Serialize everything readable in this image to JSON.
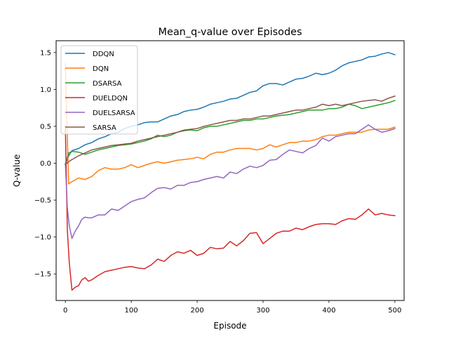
{
  "chart_data": {
    "type": "line",
    "title": "Mean_q-value over Episodes",
    "xlabel": "Episode",
    "ylabel": "Q-value",
    "xlim": [
      -14,
      514
    ],
    "ylim": [
      -1.86,
      1.66
    ],
    "xticks": [
      0,
      100,
      200,
      300,
      400,
      500
    ],
    "xtick_labels": [
      "0",
      "100",
      "200",
      "300",
      "400",
      "500"
    ],
    "yticks": [
      -1.5,
      -1.0,
      -0.5,
      0.0,
      0.5,
      1.0,
      1.5
    ],
    "ytick_labels": [
      "−1.5",
      "−1.0",
      "−0.5",
      "0.0",
      "0.5",
      "1.0",
      "1.5"
    ],
    "grid": false,
    "legend_position": "top-left",
    "series": [
      {
        "name": "DDQN",
        "color": "#1f77b4",
        "x": [
          0,
          5,
          10,
          20,
          30,
          40,
          50,
          60,
          70,
          80,
          90,
          100,
          110,
          120,
          130,
          140,
          150,
          160,
          170,
          180,
          190,
          200,
          210,
          220,
          230,
          240,
          250,
          260,
          270,
          280,
          290,
          300,
          310,
          320,
          330,
          340,
          350,
          360,
          370,
          380,
          390,
          400,
          410,
          420,
          430,
          440,
          450,
          460,
          470,
          480,
          490,
          500
        ],
        "y": [
          -0.02,
          0.1,
          0.17,
          0.2,
          0.25,
          0.28,
          0.33,
          0.36,
          0.4,
          0.42,
          0.47,
          0.5,
          0.52,
          0.55,
          0.56,
          0.56,
          0.6,
          0.64,
          0.66,
          0.7,
          0.72,
          0.73,
          0.76,
          0.8,
          0.82,
          0.84,
          0.87,
          0.88,
          0.92,
          0.96,
          0.98,
          1.05,
          1.08,
          1.08,
          1.06,
          1.1,
          1.14,
          1.15,
          1.18,
          1.22,
          1.2,
          1.22,
          1.26,
          1.32,
          1.36,
          1.38,
          1.4,
          1.44,
          1.45,
          1.48,
          1.5,
          1.47
        ]
      },
      {
        "name": "DQN",
        "color": "#ff7f0e",
        "x": [
          0,
          5,
          10,
          20,
          30,
          40,
          50,
          60,
          70,
          80,
          90,
          100,
          110,
          120,
          130,
          140,
          150,
          160,
          170,
          180,
          190,
          200,
          210,
          220,
          230,
          240,
          250,
          260,
          270,
          280,
          290,
          300,
          310,
          320,
          330,
          340,
          350,
          360,
          370,
          380,
          390,
          400,
          410,
          420,
          430,
          440,
          450,
          460,
          470,
          480,
          490,
          500
        ],
        "y": [
          1.35,
          -0.28,
          -0.25,
          -0.2,
          -0.22,
          -0.18,
          -0.1,
          -0.06,
          -0.08,
          -0.08,
          -0.06,
          -0.02,
          -0.06,
          -0.03,
          0.0,
          0.02,
          0.0,
          0.02,
          0.04,
          0.05,
          0.06,
          0.08,
          0.06,
          0.12,
          0.15,
          0.15,
          0.18,
          0.2,
          0.2,
          0.2,
          0.18,
          0.2,
          0.25,
          0.22,
          0.25,
          0.28,
          0.28,
          0.3,
          0.3,
          0.32,
          0.36,
          0.38,
          0.38,
          0.4,
          0.42,
          0.42,
          0.42,
          0.45,
          0.46,
          0.46,
          0.46,
          0.49
        ]
      },
      {
        "name": "DSARSA",
        "color": "#2ca02c",
        "x": [
          0,
          5,
          10,
          20,
          30,
          40,
          50,
          60,
          70,
          80,
          90,
          100,
          110,
          120,
          130,
          140,
          150,
          160,
          170,
          180,
          190,
          200,
          210,
          220,
          230,
          240,
          250,
          260,
          270,
          280,
          290,
          300,
          310,
          320,
          330,
          340,
          350,
          360,
          370,
          380,
          390,
          400,
          410,
          420,
          430,
          440,
          450,
          460,
          470,
          480,
          490,
          500
        ],
        "y": [
          -0.02,
          0.14,
          0.16,
          0.15,
          0.12,
          0.15,
          0.18,
          0.2,
          0.22,
          0.24,
          0.25,
          0.26,
          0.28,
          0.3,
          0.33,
          0.38,
          0.36,
          0.38,
          0.42,
          0.44,
          0.45,
          0.44,
          0.48,
          0.5,
          0.5,
          0.52,
          0.54,
          0.56,
          0.58,
          0.58,
          0.6,
          0.6,
          0.62,
          0.64,
          0.65,
          0.66,
          0.68,
          0.7,
          0.72,
          0.72,
          0.72,
          0.74,
          0.74,
          0.76,
          0.8,
          0.78,
          0.74,
          0.76,
          0.78,
          0.8,
          0.82,
          0.85
        ]
      },
      {
        "name": "DUELDQN",
        "color": "#d62728",
        "x": [
          0,
          3,
          6,
          10,
          15,
          20,
          25,
          30,
          35,
          40,
          50,
          60,
          70,
          80,
          90,
          100,
          110,
          120,
          130,
          140,
          150,
          160,
          170,
          180,
          190,
          200,
          210,
          220,
          230,
          240,
          250,
          260,
          270,
          280,
          290,
          300,
          310,
          320,
          330,
          340,
          350,
          360,
          370,
          380,
          390,
          400,
          410,
          420,
          430,
          440,
          450,
          460,
          470,
          480,
          490,
          500
        ],
        "y": [
          0.5,
          -0.9,
          -1.35,
          -1.72,
          -1.68,
          -1.66,
          -1.58,
          -1.55,
          -1.6,
          -1.58,
          -1.52,
          -1.47,
          -1.45,
          -1.43,
          -1.41,
          -1.4,
          -1.42,
          -1.43,
          -1.38,
          -1.3,
          -1.33,
          -1.25,
          -1.2,
          -1.22,
          -1.18,
          -1.25,
          -1.22,
          -1.14,
          -1.16,
          -1.15,
          -1.06,
          -1.12,
          -1.05,
          -0.95,
          -0.94,
          -1.09,
          -1.02,
          -0.95,
          -0.92,
          -0.92,
          -0.88,
          -0.9,
          -0.86,
          -0.83,
          -0.82,
          -0.82,
          -0.83,
          -0.78,
          -0.75,
          -0.76,
          -0.7,
          -0.62,
          -0.7,
          -0.68,
          -0.7,
          -0.71
        ]
      },
      {
        "name": "DUELSARSA",
        "color": "#9467bd",
        "x": [
          0,
          3,
          6,
          10,
          15,
          20,
          25,
          30,
          35,
          40,
          50,
          60,
          70,
          80,
          90,
          100,
          110,
          120,
          130,
          140,
          150,
          160,
          170,
          180,
          190,
          200,
          210,
          220,
          230,
          240,
          250,
          260,
          270,
          280,
          290,
          300,
          310,
          320,
          330,
          340,
          350,
          360,
          370,
          380,
          390,
          400,
          410,
          420,
          430,
          440,
          450,
          460,
          470,
          480,
          490,
          500
        ],
        "y": [
          0.0,
          -0.6,
          -0.85,
          -1.02,
          -0.92,
          -0.85,
          -0.76,
          -0.73,
          -0.74,
          -0.74,
          -0.7,
          -0.7,
          -0.62,
          -0.64,
          -0.58,
          -0.52,
          -0.49,
          -0.47,
          -0.4,
          -0.34,
          -0.33,
          -0.35,
          -0.3,
          -0.3,
          -0.26,
          -0.25,
          -0.22,
          -0.2,
          -0.18,
          -0.2,
          -0.12,
          -0.14,
          -0.08,
          -0.04,
          -0.06,
          -0.03,
          0.04,
          0.05,
          0.12,
          0.18,
          0.16,
          0.14,
          0.2,
          0.24,
          0.34,
          0.3,
          0.36,
          0.38,
          0.4,
          0.4,
          0.46,
          0.52,
          0.46,
          0.42,
          0.44,
          0.47
        ]
      },
      {
        "name": "SARSA",
        "color": "#8c564b",
        "x": [
          0,
          5,
          10,
          20,
          30,
          40,
          50,
          60,
          70,
          80,
          90,
          100,
          110,
          120,
          130,
          140,
          150,
          160,
          170,
          180,
          190,
          200,
          210,
          220,
          230,
          240,
          250,
          260,
          270,
          280,
          290,
          300,
          310,
          320,
          330,
          340,
          350,
          360,
          370,
          380,
          390,
          400,
          410,
          420,
          430,
          440,
          450,
          460,
          470,
          480,
          490,
          500
        ],
        "y": [
          -0.02,
          0.02,
          0.05,
          0.1,
          0.14,
          0.18,
          0.2,
          0.22,
          0.24,
          0.25,
          0.26,
          0.27,
          0.3,
          0.32,
          0.34,
          0.36,
          0.38,
          0.4,
          0.42,
          0.45,
          0.46,
          0.47,
          0.5,
          0.52,
          0.54,
          0.56,
          0.58,
          0.58,
          0.6,
          0.6,
          0.62,
          0.64,
          0.64,
          0.66,
          0.68,
          0.7,
          0.72,
          0.72,
          0.74,
          0.76,
          0.8,
          0.78,
          0.8,
          0.78,
          0.8,
          0.82,
          0.84,
          0.85,
          0.86,
          0.84,
          0.88,
          0.91
        ]
      }
    ]
  }
}
